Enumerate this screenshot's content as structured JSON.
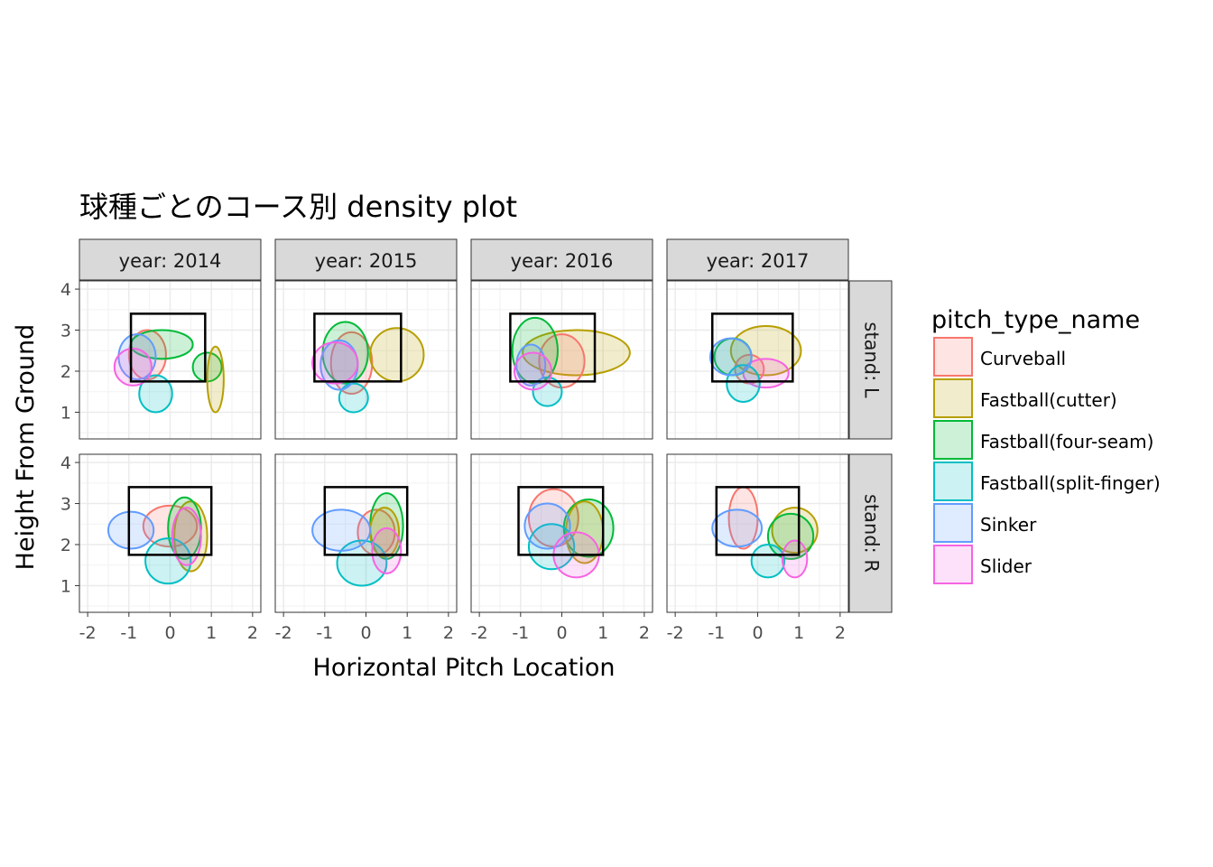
{
  "chart_data": {
    "type": "density_contour",
    "title": "球種ごとのコース別 density plot",
    "xlabel": "Horizontal Pitch Location",
    "ylabel": "Height From Ground",
    "xlim": [
      -2.2,
      2.2
    ],
    "ylim": [
      0.35,
      4.2
    ],
    "x_ticks": [
      -2,
      -1,
      0,
      1,
      2
    ],
    "y_ticks": [
      1,
      2,
      3,
      4
    ],
    "x_tick_labels": [
      "-2",
      "-1",
      "0",
      "1",
      "2"
    ],
    "y_tick_labels": [
      "1",
      "2",
      "3",
      "4"
    ],
    "grid": true,
    "legend_position": "right",
    "facets": {
      "columns": [
        "year: 2014",
        "year: 2015",
        "year: 2016",
        "year: 2017"
      ],
      "rows": [
        "stand: L",
        "stand: R"
      ]
    },
    "legend": {
      "title": "pitch_type_name",
      "items": [
        {
          "name": "Curveball",
          "color": "#F8766D"
        },
        {
          "name": "Fastball(cutter)",
          "color": "#B79F00"
        },
        {
          "name": "Fastball(four-seam)",
          "color": "#00BA38"
        },
        {
          "name": "Fastball(split-finger)",
          "color": "#00BFC4"
        },
        {
          "name": "Sinker",
          "color": "#619CFF"
        },
        {
          "name": "Slider",
          "color": "#F564E3"
        }
      ]
    },
    "panels": [
      {
        "row": 0,
        "col": 0,
        "strike_zone": [
          -0.95,
          0.85,
          1.75,
          3.4
        ],
        "regions": [
          {
            "series": "Curveball",
            "cx": -0.55,
            "cy": 2.4,
            "rx": 0.45,
            "ry": 0.6
          },
          {
            "series": "Fastball(four-seam)",
            "cx": -0.2,
            "cy": 2.65,
            "rx": 0.75,
            "ry": 0.35
          },
          {
            "series": "Fastball(four-seam)",
            "cx": 0.9,
            "cy": 2.1,
            "rx": 0.35,
            "ry": 0.35
          },
          {
            "series": "Fastball(cutter)",
            "cx": 1.1,
            "cy": 1.8,
            "rx": 0.2,
            "ry": 0.8
          },
          {
            "series": "Fastball(split-finger)",
            "cx": -0.35,
            "cy": 1.45,
            "rx": 0.4,
            "ry": 0.45
          },
          {
            "series": "Sinker",
            "cx": -0.8,
            "cy": 2.35,
            "rx": 0.45,
            "ry": 0.55
          },
          {
            "series": "Slider",
            "cx": -0.9,
            "cy": 2.1,
            "rx": 0.45,
            "ry": 0.45
          }
        ]
      },
      {
        "row": 0,
        "col": 1,
        "strike_zone": [
          -1.25,
          0.85,
          1.75,
          3.4
        ],
        "regions": [
          {
            "series": "Curveball",
            "cx": -0.35,
            "cy": 2.2,
            "rx": 0.5,
            "ry": 0.75
          },
          {
            "series": "Fastball(cutter)",
            "cx": 0.75,
            "cy": 2.4,
            "rx": 0.65,
            "ry": 0.65
          },
          {
            "series": "Fastball(four-seam)",
            "cx": -0.5,
            "cy": 2.45,
            "rx": 0.55,
            "ry": 0.75
          },
          {
            "series": "Fastball(split-finger)",
            "cx": -0.3,
            "cy": 1.35,
            "rx": 0.35,
            "ry": 0.35
          },
          {
            "series": "Sinker",
            "cx": -0.65,
            "cy": 2.15,
            "rx": 0.45,
            "ry": 0.6
          },
          {
            "series": "Slider",
            "cx": -0.75,
            "cy": 2.2,
            "rx": 0.55,
            "ry": 0.5
          }
        ]
      },
      {
        "row": 0,
        "col": 2,
        "strike_zone": [
          -1.25,
          0.8,
          1.75,
          3.4
        ],
        "regions": [
          {
            "series": "Fastball(cutter)",
            "cx": 0.35,
            "cy": 2.45,
            "rx": 1.3,
            "ry": 0.55
          },
          {
            "series": "Curveball",
            "cx": 0.0,
            "cy": 2.25,
            "rx": 0.55,
            "ry": 0.65
          },
          {
            "series": "Fastball(four-seam)",
            "cx": -0.65,
            "cy": 2.5,
            "rx": 0.55,
            "ry": 0.8
          },
          {
            "series": "Fastball(split-finger)",
            "cx": -0.35,
            "cy": 1.5,
            "rx": 0.35,
            "ry": 0.35
          },
          {
            "series": "Sinker",
            "cx": -0.75,
            "cy": 2.15,
            "rx": 0.35,
            "ry": 0.5
          },
          {
            "series": "Slider",
            "cx": -0.7,
            "cy": 2.0,
            "rx": 0.45,
            "ry": 0.45
          }
        ]
      },
      {
        "row": 0,
        "col": 3,
        "strike_zone": [
          -1.1,
          0.85,
          1.75,
          3.4
        ],
        "regions": [
          {
            "series": "Fastball(cutter)",
            "cx": 0.2,
            "cy": 2.5,
            "rx": 0.85,
            "ry": 0.6
          },
          {
            "series": "Curveball",
            "cx": -0.2,
            "cy": 2.05,
            "rx": 0.35,
            "ry": 0.35
          },
          {
            "series": "Slider",
            "cx": 0.2,
            "cy": 1.95,
            "rx": 0.55,
            "ry": 0.35
          },
          {
            "series": "Fastball(four-seam)",
            "cx": -0.6,
            "cy": 2.35,
            "rx": 0.45,
            "ry": 0.45
          },
          {
            "series": "Fastball(split-finger)",
            "cx": -0.35,
            "cy": 1.7,
            "rx": 0.4,
            "ry": 0.45
          },
          {
            "series": "Sinker",
            "cx": -0.65,
            "cy": 2.35,
            "rx": 0.5,
            "ry": 0.45
          }
        ]
      },
      {
        "row": 1,
        "col": 0,
        "strike_zone": [
          -1.0,
          1.0,
          1.75,
          3.4
        ],
        "regions": [
          {
            "series": "Curveball",
            "cx": 0.0,
            "cy": 2.45,
            "rx": 0.65,
            "ry": 0.5
          },
          {
            "series": "Fastball(cutter)",
            "cx": 0.5,
            "cy": 2.2,
            "rx": 0.4,
            "ry": 0.85
          },
          {
            "series": "Fastball(four-seam)",
            "cx": 0.35,
            "cy": 2.4,
            "rx": 0.4,
            "ry": 0.75
          },
          {
            "series": "Fastball(split-finger)",
            "cx": -0.05,
            "cy": 1.6,
            "rx": 0.55,
            "ry": 0.55
          },
          {
            "series": "Sinker",
            "cx": -0.95,
            "cy": 2.35,
            "rx": 0.55,
            "ry": 0.45
          },
          {
            "series": "Slider",
            "cx": 0.4,
            "cy": 2.2,
            "rx": 0.35,
            "ry": 0.7
          }
        ]
      },
      {
        "row": 1,
        "col": 1,
        "strike_zone": [
          -1.0,
          1.0,
          1.75,
          3.4
        ],
        "regions": [
          {
            "series": "Curveball",
            "cx": 0.25,
            "cy": 2.3,
            "rx": 0.45,
            "ry": 0.55
          },
          {
            "series": "Fastball(four-seam)",
            "cx": 0.5,
            "cy": 2.45,
            "rx": 0.4,
            "ry": 0.8
          },
          {
            "series": "Fastball(cutter)",
            "cx": 0.45,
            "cy": 2.3,
            "rx": 0.35,
            "ry": 0.6
          },
          {
            "series": "Fastball(split-finger)",
            "cx": -0.1,
            "cy": 1.55,
            "rx": 0.6,
            "ry": 0.55
          },
          {
            "series": "Sinker",
            "cx": -0.6,
            "cy": 2.35,
            "rx": 0.7,
            "ry": 0.5
          },
          {
            "series": "Slider",
            "cx": 0.5,
            "cy": 1.85,
            "rx": 0.35,
            "ry": 0.55
          }
        ]
      },
      {
        "row": 1,
        "col": 2,
        "strike_zone": [
          -1.05,
          1.0,
          1.75,
          3.4
        ],
        "regions": [
          {
            "series": "Curveball",
            "cx": -0.2,
            "cy": 2.65,
            "rx": 0.6,
            "ry": 0.7
          },
          {
            "series": "Fastball(four-seam)",
            "cx": 0.65,
            "cy": 2.4,
            "rx": 0.6,
            "ry": 0.7
          },
          {
            "series": "Fastball(cutter)",
            "cx": 0.55,
            "cy": 2.3,
            "rx": 0.45,
            "ry": 0.75
          },
          {
            "series": "Fastball(split-finger)",
            "cx": -0.25,
            "cy": 1.95,
            "rx": 0.55,
            "ry": 0.55
          },
          {
            "series": "Sinker",
            "cx": -0.35,
            "cy": 2.45,
            "rx": 0.55,
            "ry": 0.55
          },
          {
            "series": "Slider",
            "cx": 0.35,
            "cy": 1.75,
            "rx": 0.55,
            "ry": 0.55
          }
        ]
      },
      {
        "row": 1,
        "col": 3,
        "strike_zone": [
          -1.0,
          1.0,
          1.75,
          3.4
        ],
        "regions": [
          {
            "series": "Curveball",
            "cx": -0.35,
            "cy": 2.65,
            "rx": 0.35,
            "ry": 0.75
          },
          {
            "series": "Fastball(cutter)",
            "cx": 0.9,
            "cy": 2.35,
            "rx": 0.55,
            "ry": 0.55
          },
          {
            "series": "Fastball(four-seam)",
            "cx": 0.8,
            "cy": 2.2,
            "rx": 0.55,
            "ry": 0.55
          },
          {
            "series": "Fastball(split-finger)",
            "cx": 0.25,
            "cy": 1.6,
            "rx": 0.4,
            "ry": 0.4
          },
          {
            "series": "Sinker",
            "cx": -0.5,
            "cy": 2.4,
            "rx": 0.6,
            "ry": 0.45
          },
          {
            "series": "Slider",
            "cx": 0.9,
            "cy": 1.65,
            "rx": 0.3,
            "ry": 0.45
          }
        ]
      }
    ]
  }
}
